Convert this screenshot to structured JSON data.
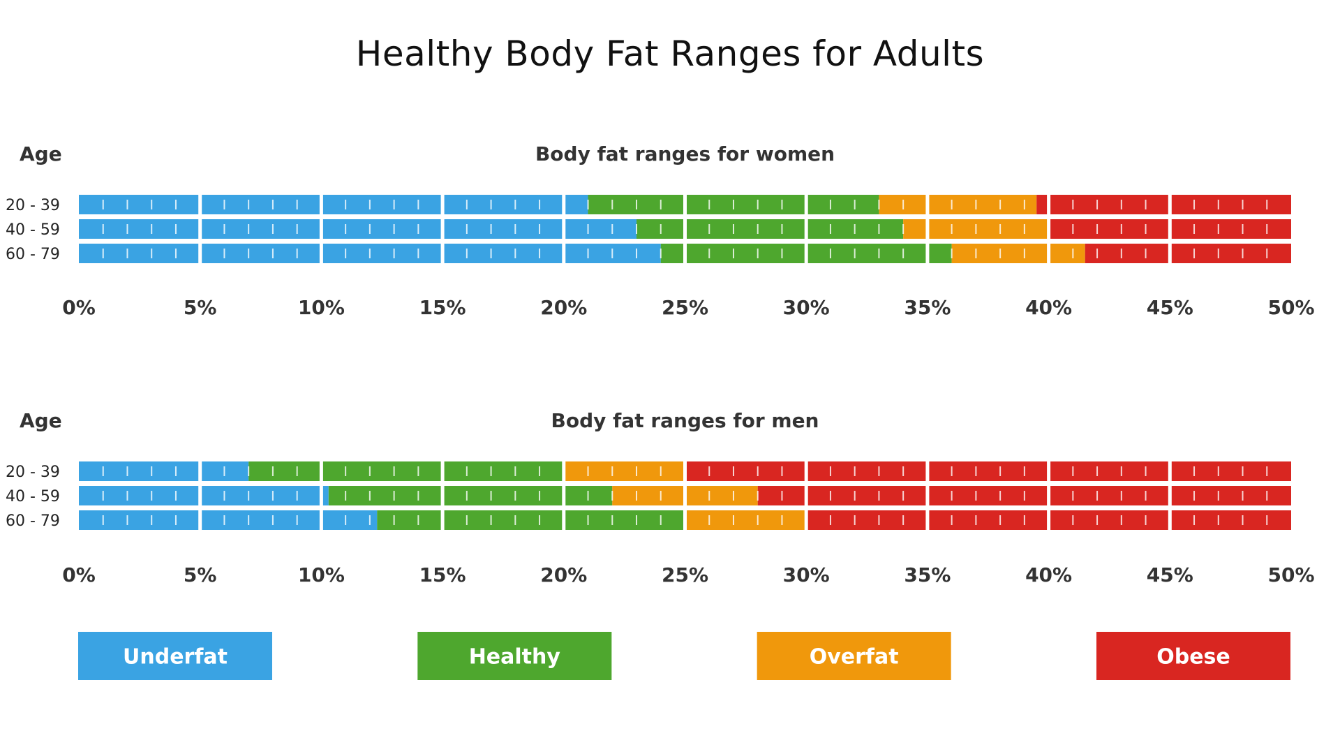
{
  "title": "Healthy Body Fat Ranges for Adults",
  "colors": {
    "Underfat": "#3aa3e3",
    "Healthy": "#4ea72e",
    "Overfat": "#f0980c",
    "Obese": "#d92621",
    "divider": "#ffffff"
  },
  "legend": [
    "Underfat",
    "Healthy",
    "Overfat",
    "Obese"
  ],
  "chart_data": [
    {
      "type": "bar",
      "subtitle": "Body fat ranges for women",
      "row_axis_label": "Age",
      "x_ticks": [
        "0%",
        "5%",
        "10%",
        "15%",
        "20%",
        "25%",
        "30%",
        "35%",
        "40%",
        "45%",
        "50%"
      ],
      "xlim": [
        0,
        50
      ],
      "rows": [
        {
          "label": "20 - 39",
          "segments": [
            {
              "category": "Underfat",
              "from": 0,
              "to": 21
            },
            {
              "category": "Healthy",
              "from": 21,
              "to": 33
            },
            {
              "category": "Overfat",
              "from": 33,
              "to": 39.5
            },
            {
              "category": "Obese",
              "from": 39.5,
              "to": 50
            }
          ]
        },
        {
          "label": "40 - 59",
          "segments": [
            {
              "category": "Underfat",
              "from": 0,
              "to": 23
            },
            {
              "category": "Healthy",
              "from": 23,
              "to": 34
            },
            {
              "category": "Overfat",
              "from": 34,
              "to": 40
            },
            {
              "category": "Obese",
              "from": 40,
              "to": 50
            }
          ]
        },
        {
          "label": "60 - 79",
          "segments": [
            {
              "category": "Underfat",
              "from": 0,
              "to": 24
            },
            {
              "category": "Healthy",
              "from": 24,
              "to": 36
            },
            {
              "category": "Overfat",
              "from": 36,
              "to": 41.5
            },
            {
              "category": "Obese",
              "from": 41.5,
              "to": 50
            }
          ]
        }
      ]
    },
    {
      "type": "bar",
      "subtitle": "Body fat ranges for men",
      "row_axis_label": "Age",
      "x_ticks": [
        "0%",
        "5%",
        "10%",
        "15%",
        "20%",
        "25%",
        "30%",
        "35%",
        "40%",
        "45%",
        "50%"
      ],
      "xlim": [
        0,
        50
      ],
      "rows": [
        {
          "label": "20 - 39",
          "segments": [
            {
              "category": "Underfat",
              "from": 0,
              "to": 7
            },
            {
              "category": "Healthy",
              "from": 7,
              "to": 20
            },
            {
              "category": "Overfat",
              "from": 20,
              "to": 25
            },
            {
              "category": "Obese",
              "from": 25,
              "to": 50
            }
          ]
        },
        {
          "label": "40 - 59",
          "segments": [
            {
              "category": "Underfat",
              "from": 0,
              "to": 10.3
            },
            {
              "category": "Healthy",
              "from": 10.3,
              "to": 22
            },
            {
              "category": "Overfat",
              "from": 22,
              "to": 28
            },
            {
              "category": "Obese",
              "from": 28,
              "to": 50
            }
          ]
        },
        {
          "label": "60 - 79",
          "segments": [
            {
              "category": "Underfat",
              "from": 0,
              "to": 12.3
            },
            {
              "category": "Healthy",
              "from": 12.3,
              "to": 25
            },
            {
              "category": "Overfat",
              "from": 25,
              "to": 30
            },
            {
              "category": "Obese",
              "from": 30,
              "to": 50
            }
          ]
        }
      ]
    }
  ]
}
